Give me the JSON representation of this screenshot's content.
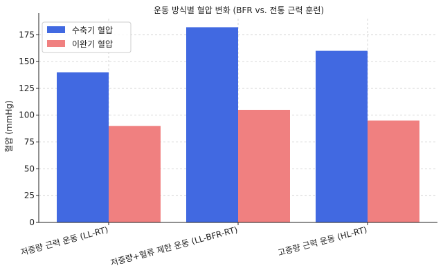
{
  "chart_data": {
    "type": "bar",
    "title": "운동 방식별 혈압 변화 (BFR vs. 전통 근력 훈련)",
    "xlabel": "",
    "ylabel": "혈압 (mmHg)",
    "categories": [
      "저중량 근력 운동 (LL-RT)",
      "저중량+혈류 제한 운동 (LL-BFR-RT)",
      "고중량 근력 운동 (HL-RT)"
    ],
    "series": [
      {
        "name": "수축기 혈압",
        "values": [
          140,
          182,
          160
        ],
        "color": "#4169e1"
      },
      {
        "name": "이완기 혈압",
        "values": [
          90,
          105,
          95
        ],
        "color": "#f08080"
      }
    ],
    "ylim": [
      0,
      190
    ],
    "yticks": [
      0,
      25,
      50,
      75,
      100,
      125,
      150,
      175
    ],
    "grid": true,
    "legend": "top-left"
  }
}
